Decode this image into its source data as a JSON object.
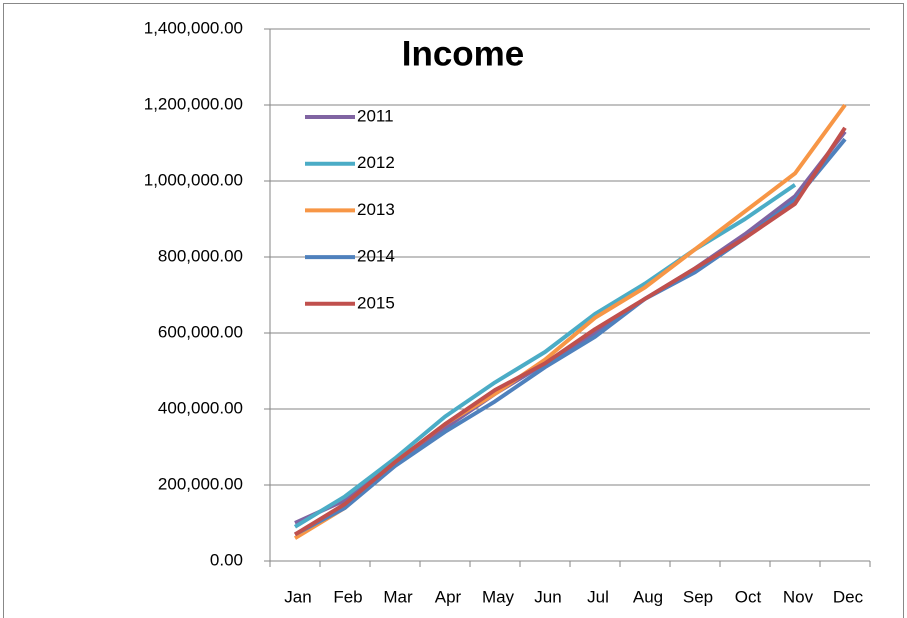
{
  "chart_data": {
    "type": "line",
    "title": "Income",
    "categories": [
      "Jan",
      "Feb",
      "Mar",
      "Apr",
      "May",
      "Jun",
      "Jul",
      "Aug",
      "Sep",
      "Oct",
      "Nov",
      "Dec"
    ],
    "series": [
      {
        "name": "2011",
        "color": "#8064a2",
        "values": [
          100000,
          160000,
          260000,
          350000,
          440000,
          520000,
          600000,
          690000,
          770000,
          860000,
          960000,
          1130000
        ]
      },
      {
        "name": "2012",
        "color": "#4bacc6",
        "values": [
          90000,
          170000,
          270000,
          380000,
          470000,
          550000,
          650000,
          730000,
          820000,
          900000,
          990000,
          null
        ]
      },
      {
        "name": "2013",
        "color": "#f79646",
        "values": [
          60000,
          140000,
          260000,
          360000,
          440000,
          530000,
          640000,
          720000,
          820000,
          920000,
          1020000,
          1200000
        ]
      },
      {
        "name": "2014",
        "color": "#4f81bd",
        "values": [
          70000,
          140000,
          250000,
          340000,
          420000,
          510000,
          590000,
          690000,
          760000,
          850000,
          950000,
          1110000
        ]
      },
      {
        "name": "2015",
        "color": "#c0504d",
        "values": [
          70000,
          150000,
          260000,
          360000,
          450000,
          520000,
          610000,
          690000,
          770000,
          850000,
          940000,
          1140000
        ]
      }
    ],
    "ylim": [
      0,
      1400000
    ],
    "yticks": [
      {
        "value": 0,
        "label": "0.00"
      },
      {
        "value": 200000,
        "label": "200,000.00"
      },
      {
        "value": 400000,
        "label": "400,000.00"
      },
      {
        "value": 600000,
        "label": "600,000.00"
      },
      {
        "value": 800000,
        "label": "800,000.00"
      },
      {
        "value": 1000000,
        "label": "1,000,000.00"
      },
      {
        "value": 1200000,
        "label": "1,200,000.00"
      },
      {
        "value": 1400000,
        "label": "1,400,000.00"
      }
    ],
    "grid": true,
    "legend": "upper left"
  }
}
